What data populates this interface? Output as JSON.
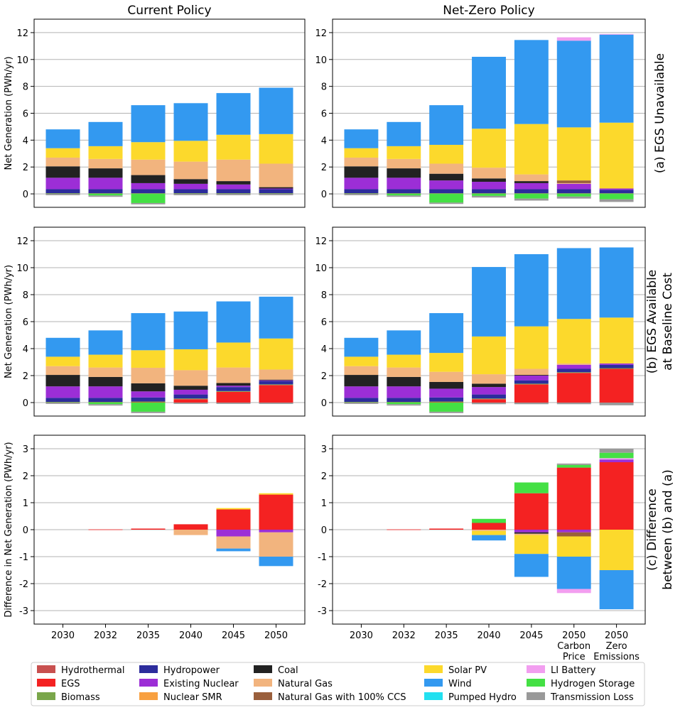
{
  "chart_data": {
    "type": "bar",
    "stacked": true,
    "grid": "horizontal",
    "legend_position": "bottom",
    "column_titles": [
      "Current Policy",
      "Net-Zero Policy"
    ],
    "row_titles": [
      [
        "(a) EGS Unavailable"
      ],
      [
        "(b) EGS Available",
        "at Baseline Cost"
      ],
      [
        "(c) Difference",
        "between (b) and (a)"
      ]
    ],
    "row_ylabels": [
      "Net Generation (PWh/yr)",
      "Net Generation (PWh/yr)",
      "Difference in Net Generation (PWh/yr)"
    ],
    "row_yranges": [
      [
        -1,
        13
      ],
      [
        -1,
        13
      ],
      [
        -3.5,
        3.5
      ]
    ],
    "row_ticks": [
      [
        0,
        2,
        4,
        6,
        8,
        10,
        12
      ],
      [
        0,
        2,
        4,
        6,
        8,
        10,
        12
      ],
      [
        -3,
        -2,
        -1,
        0,
        1,
        2,
        3
      ]
    ],
    "categories_current": [
      [
        "2030"
      ],
      [
        "2032"
      ],
      [
        "2035"
      ],
      [
        "2040"
      ],
      [
        "2045"
      ],
      [
        "2050"
      ]
    ],
    "categories_netzero": [
      [
        "2030"
      ],
      [
        "2032"
      ],
      [
        "2035"
      ],
      [
        "2040"
      ],
      [
        "2045"
      ],
      [
        "2050",
        "Carbon",
        "Price"
      ],
      [
        "2050",
        "Zero",
        "Emissions"
      ]
    ],
    "series": [
      {
        "name": "Hydrothermal",
        "color": "#c8504f"
      },
      {
        "name": "EGS",
        "color": "#f42222"
      },
      {
        "name": "Biomass",
        "color": "#79a64a"
      },
      {
        "name": "Hydropower",
        "color": "#2c2c9c"
      },
      {
        "name": "Existing Nuclear",
        "color": "#9c2ed6"
      },
      {
        "name": "Nuclear SMR",
        "color": "#f8a040"
      },
      {
        "name": "Coal",
        "color": "#222222"
      },
      {
        "name": "Natural Gas",
        "color": "#f2b47e"
      },
      {
        "name": "Natural Gas with 100% CCS",
        "color": "#9a5f3c"
      },
      {
        "name": "Solar PV",
        "color": "#fcd92c"
      },
      {
        "name": "Wind",
        "color": "#3399f0"
      },
      {
        "name": "Pumped Hydro",
        "color": "#22e0f0"
      },
      {
        "name": "LI Battery",
        "color": "#f29ef0"
      },
      {
        "name": "Hydrogen Storage",
        "color": "#44e044"
      },
      {
        "name": "Transmission Loss",
        "color": "#999999"
      }
    ],
    "panels": [
      {
        "id": "a-current",
        "bars": [
          {
            "EGS": 0,
            "Biomass": 0.05,
            "Hydropower": 0.3,
            "Existing Nuclear": 0.85,
            "Coal": 0.85,
            "Natural Gas": 0.65,
            "Solar PV": 0.7,
            "Wind": 1.4,
            "Hydrogen Storage": 0,
            "Transmission Loss": -0.1
          },
          {
            "EGS": 0,
            "Biomass": 0.05,
            "Hydropower": 0.3,
            "Existing Nuclear": 0.85,
            "Coal": 0.7,
            "Natural Gas": 0.7,
            "Solar PV": 0.95,
            "Wind": 1.8,
            "Hydrogen Storage": -0.12,
            "Transmission Loss": -0.1
          },
          {
            "EGS": 0,
            "Biomass": 0.05,
            "Hydropower": 0.3,
            "Existing Nuclear": 0.45,
            "Coal": 0.6,
            "Natural Gas": 1.15,
            "Solar PV": 1.3,
            "Wind": 2.75,
            "Hydrogen Storage": -0.68,
            "Transmission Loss": -0.1
          },
          {
            "EGS": 0,
            "Biomass": 0.05,
            "Hydropower": 0.3,
            "Existing Nuclear": 0.4,
            "Coal": 0.35,
            "Natural Gas": 1.3,
            "Solar PV": 1.55,
            "Wind": 2.8,
            "Hydrogen Storage": 0,
            "Transmission Loss": -0.1
          },
          {
            "EGS": 0,
            "Biomass": 0.05,
            "Hydropower": 0.3,
            "Existing Nuclear": 0.35,
            "Coal": 0.25,
            "Natural Gas": 1.6,
            "Solar PV": 1.85,
            "Wind": 3.1,
            "Hydrogen Storage": 0,
            "Transmission Loss": -0.1
          },
          {
            "EGS": 0,
            "Biomass": 0.05,
            "Hydropower": 0.3,
            "Existing Nuclear": 0.05,
            "Coal": 0.1,
            "Natural Gas": 1.75,
            "Solar PV": 2.2,
            "Wind": 3.45,
            "Hydrogen Storage": 0,
            "Transmission Loss": -0.1
          }
        ]
      },
      {
        "id": "a-netzero",
        "bars": [
          {
            "EGS": 0,
            "Biomass": 0.05,
            "Hydropower": 0.3,
            "Existing Nuclear": 0.85,
            "Coal": 0.85,
            "Natural Gas": 0.65,
            "Solar PV": 0.7,
            "Wind": 1.4,
            "Hydrogen Storage": 0,
            "Transmission Loss": -0.1
          },
          {
            "EGS": 0,
            "Biomass": 0.05,
            "Hydropower": 0.3,
            "Existing Nuclear": 0.85,
            "Coal": 0.7,
            "Natural Gas": 0.7,
            "Solar PV": 0.95,
            "Wind": 1.8,
            "Hydrogen Storage": -0.12,
            "Transmission Loss": -0.1
          },
          {
            "EGS": 0,
            "Biomass": 0.05,
            "Hydropower": 0.3,
            "Existing Nuclear": 0.65,
            "Coal": 0.5,
            "Natural Gas": 0.75,
            "Solar PV": 1.4,
            "Wind": 2.95,
            "Hydrogen Storage": -0.65,
            "Transmission Loss": -0.1
          },
          {
            "EGS": 0,
            "Biomass": 0.05,
            "Hydropower": 0.3,
            "Existing Nuclear": 0.55,
            "Coal": 0.25,
            "Natural Gas": 0.8,
            "Solar PV": 2.9,
            "Wind": 5.35,
            "Hydrogen Storage": -0.15,
            "Transmission Loss": -0.12
          },
          {
            "EGS": 0,
            "Biomass": 0.05,
            "Hydropower": 0.3,
            "Existing Nuclear": 0.45,
            "Coal": 0.15,
            "Natural Gas": 0.5,
            "Solar PV": 3.75,
            "Wind": 6.25,
            "Hydrogen Storage": -0.35,
            "Transmission Loss": -0.15
          },
          {
            "EGS": 0,
            "Biomass": 0.05,
            "Hydropower": 0.3,
            "Existing Nuclear": 0.4,
            "Natural Gas with 100% CCS": 0.2,
            "LI Battery": 0.25,
            "Natural Gas": 0.05,
            "Solar PV": 3.95,
            "Wind": 6.45,
            "Hydrogen Storage": -0.2,
            "Transmission Loss": -0.15
          },
          {
            "EGS": 0,
            "Biomass": 0.05,
            "Hydropower": 0.25,
            "Existing Nuclear": 0.1,
            "LI Battery": 0.05,
            "Solar PV": 4.9,
            "Wind": 6.55,
            "Hydrogen Storage": -0.4,
            "Transmission Loss": -0.2
          }
        ]
      },
      {
        "id": "b-current",
        "bars": [
          {
            "EGS": 0,
            "Biomass": 0.05,
            "Hydropower": 0.3,
            "Existing Nuclear": 0.85,
            "Coal": 0.85,
            "Natural Gas": 0.65,
            "Solar PV": 0.7,
            "Wind": 1.4,
            "Transmission Loss": -0.1
          },
          {
            "EGS": 0,
            "Biomass": 0.05,
            "Hydropower": 0.3,
            "Existing Nuclear": 0.85,
            "Coal": 0.7,
            "Natural Gas": 0.7,
            "Solar PV": 0.95,
            "Wind": 1.8,
            "Hydrogen Storage": -0.12,
            "Transmission Loss": -0.1
          },
          {
            "EGS": 0.03,
            "Biomass": 0.05,
            "Hydropower": 0.3,
            "Existing Nuclear": 0.45,
            "Coal": 0.6,
            "Natural Gas": 1.15,
            "Solar PV": 1.3,
            "Wind": 2.75,
            "Hydrogen Storage": -0.68,
            "Transmission Loss": -0.1
          },
          {
            "EGS": 0.25,
            "Biomass": 0.05,
            "Hydropower": 0.3,
            "Existing Nuclear": 0.35,
            "Coal": 0.3,
            "Natural Gas": 1.15,
            "Solar PV": 1.55,
            "Wind": 2.8,
            "Transmission Loss": -0.1
          },
          {
            "EGS": 0.8,
            "Biomass": 0.05,
            "Hydropower": 0.3,
            "Existing Nuclear": 0.1,
            "Coal": 0.2,
            "Natural Gas": 1.15,
            "Solar PV": 1.85,
            "Wind": 3.05,
            "Transmission Loss": -0.1
          },
          {
            "EGS": 1.3,
            "Biomass": 0.05,
            "Hydropower": 0.25,
            "Existing Nuclear": 0.05,
            "Coal": 0.05,
            "Natural Gas": 0.75,
            "Solar PV": 2.3,
            "Wind": 3.1,
            "Transmission Loss": -0.1
          }
        ]
      },
      {
        "id": "b-netzero",
        "bars": [
          {
            "EGS": 0,
            "Biomass": 0.05,
            "Hydropower": 0.3,
            "Existing Nuclear": 0.85,
            "Coal": 0.85,
            "Natural Gas": 0.65,
            "Solar PV": 0.7,
            "Wind": 1.4,
            "Transmission Loss": -0.1
          },
          {
            "EGS": 0,
            "Biomass": 0.05,
            "Hydropower": 0.3,
            "Existing Nuclear": 0.85,
            "Coal": 0.7,
            "Natural Gas": 0.7,
            "Solar PV": 0.95,
            "Wind": 1.8,
            "Hydrogen Storage": -0.12,
            "Transmission Loss": -0.1
          },
          {
            "EGS": 0.03,
            "Biomass": 0.05,
            "Hydropower": 0.3,
            "Existing Nuclear": 0.65,
            "Coal": 0.5,
            "Natural Gas": 0.75,
            "Solar PV": 1.4,
            "Wind": 2.95,
            "Hydrogen Storage": -0.68,
            "Transmission Loss": -0.1
          },
          {
            "EGS": 0.25,
            "Biomass": 0.05,
            "Hydropower": 0.3,
            "Existing Nuclear": 0.55,
            "Coal": 0.25,
            "Natural Gas": 0.7,
            "Solar PV": 2.8,
            "Wind": 5.15,
            "Transmission Loss": -0.12
          },
          {
            "EGS": 1.35,
            "Biomass": 0.05,
            "Hydropower": 0.25,
            "Existing Nuclear": 0.35,
            "Coal": 0.05,
            "Natural Gas": 0.45,
            "Solar PV": 3.15,
            "Wind": 5.35,
            "Transmission Loss": -0.12
          },
          {
            "EGS": 2.2,
            "Biomass": 0.05,
            "Hydropower": 0.25,
            "Existing Nuclear": 0.3,
            "Natural Gas": 0.1,
            "Solar PV": 3.3,
            "Wind": 5.25,
            "Transmission Loss": -0.12
          },
          {
            "EGS": 2.5,
            "Biomass": 0.05,
            "Hydropower": 0.25,
            "Existing Nuclear": 0.1,
            "Solar PV": 3.4,
            "Wind": 5.2,
            "Transmission Loss": -0.2
          }
        ]
      },
      {
        "id": "c-current",
        "bars": [
          {},
          {
            "EGS": 0.01
          },
          {
            "EGS": 0.04
          },
          {
            "EGS": 0.2,
            "Natural Gas": -0.2
          },
          {
            "EGS": 0.75,
            "Solar PV": 0.05,
            "Existing Nuclear": -0.25,
            "Natural Gas": -0.45,
            "Wind": -0.1
          },
          {
            "EGS": 1.3,
            "Solar PV": 0.05,
            "Existing Nuclear": -0.1,
            "Natural Gas": -0.9,
            "Wind": -0.35
          }
        ]
      },
      {
        "id": "c-netzero",
        "bars": [
          {},
          {
            "EGS": 0.01
          },
          {
            "EGS": 0.04
          },
          {
            "EGS": 0.25,
            "Hydrogen Storage": 0.15,
            "Solar PV": -0.15,
            "Natural Gas": -0.05,
            "Wind": -0.2
          },
          {
            "EGS": 1.35,
            "Hydrogen Storage": 0.4,
            "Existing Nuclear": -0.1,
            "Natural Gas": -0.05,
            "Coal": -0.05,
            "Solar PV": -0.7,
            "Wind": -0.85
          },
          {
            "EGS": 2.3,
            "Hydrogen Storage": 0.1,
            "Transmission Loss": 0.05,
            "Existing Nuclear": -0.1,
            "LI Battery": -0.15,
            "Natural Gas with 100% CCS": -0.15,
            "Solar PV": -0.75,
            "Wind": -1.2
          },
          {
            "EGS": 2.5,
            "Existing Nuclear": 0.1,
            "LI Battery": 0.05,
            "Hydrogen Storage": 0.2,
            "Transmission Loss": 0.15,
            "Solar PV": -1.5,
            "Wind": -1.45
          }
        ]
      }
    ]
  }
}
